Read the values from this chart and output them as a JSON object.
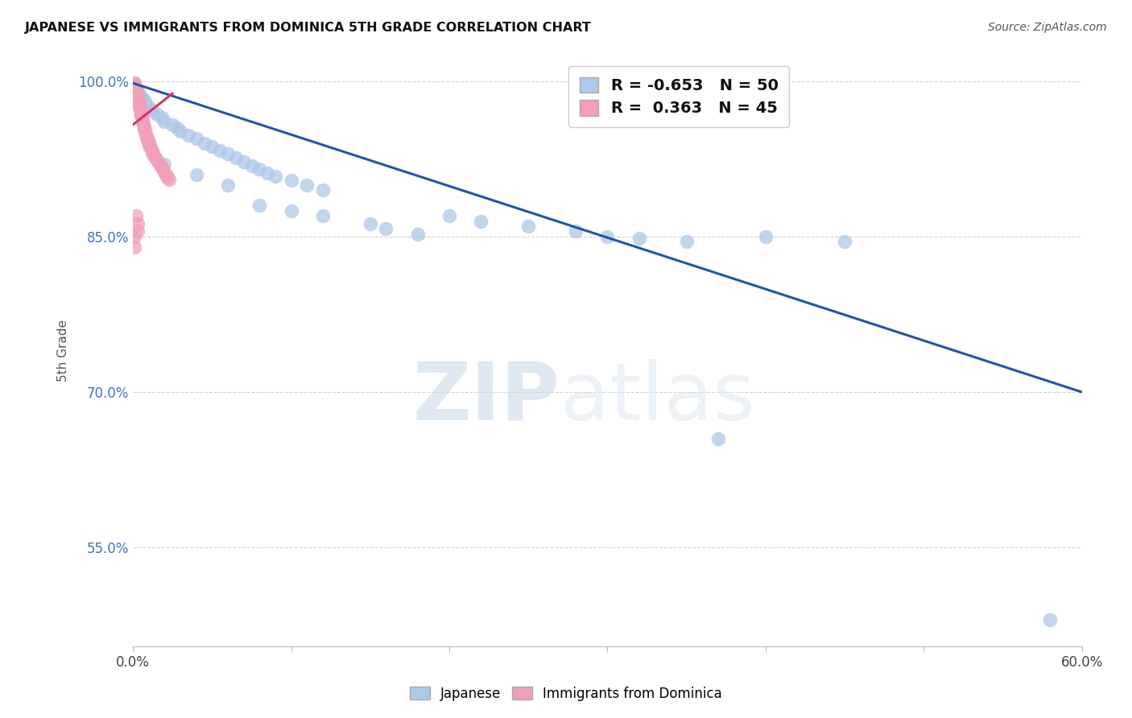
{
  "title": "JAPANESE VS IMMIGRANTS FROM DOMINICA 5TH GRADE CORRELATION CHART",
  "source": "Source: ZipAtlas.com",
  "ylabel": "5th Grade",
  "xlim": [
    0.0,
    0.6
  ],
  "ylim": [
    0.455,
    1.025
  ],
  "legend_r_blue": "-0.653",
  "legend_n_blue": "50",
  "legend_r_pink": "0.363",
  "legend_n_pink": "45",
  "blue_scatter": [
    [
      0.001,
      0.998
    ],
    [
      0.002,
      0.993
    ],
    [
      0.003,
      0.99
    ],
    [
      0.004,
      0.987
    ],
    [
      0.005,
      0.985
    ],
    [
      0.007,
      0.982
    ],
    [
      0.008,
      0.978
    ],
    [
      0.01,
      0.975
    ],
    [
      0.012,
      0.972
    ],
    [
      0.015,
      0.968
    ],
    [
      0.018,
      0.965
    ],
    [
      0.02,
      0.961
    ],
    [
      0.025,
      0.958
    ],
    [
      0.028,
      0.955
    ],
    [
      0.03,
      0.952
    ],
    [
      0.035,
      0.948
    ],
    [
      0.04,
      0.945
    ],
    [
      0.045,
      0.94
    ],
    [
      0.05,
      0.937
    ],
    [
      0.055,
      0.933
    ],
    [
      0.06,
      0.93
    ],
    [
      0.065,
      0.926
    ],
    [
      0.07,
      0.922
    ],
    [
      0.075,
      0.918
    ],
    [
      0.08,
      0.915
    ],
    [
      0.085,
      0.911
    ],
    [
      0.09,
      0.908
    ],
    [
      0.1,
      0.904
    ],
    [
      0.11,
      0.9
    ],
    [
      0.12,
      0.895
    ],
    [
      0.02,
      0.92
    ],
    [
      0.04,
      0.91
    ],
    [
      0.06,
      0.9
    ],
    [
      0.08,
      0.88
    ],
    [
      0.1,
      0.875
    ],
    [
      0.12,
      0.87
    ],
    [
      0.15,
      0.862
    ],
    [
      0.16,
      0.858
    ],
    [
      0.18,
      0.852
    ],
    [
      0.2,
      0.87
    ],
    [
      0.22,
      0.865
    ],
    [
      0.25,
      0.86
    ],
    [
      0.28,
      0.855
    ],
    [
      0.3,
      0.85
    ],
    [
      0.32,
      0.848
    ],
    [
      0.35,
      0.845
    ],
    [
      0.4,
      0.85
    ],
    [
      0.45,
      0.845
    ],
    [
      0.37,
      0.655
    ],
    [
      0.58,
      0.48
    ]
  ],
  "pink_scatter": [
    [
      0.001,
      0.998
    ],
    [
      0.001,
      0.995
    ],
    [
      0.002,
      0.993
    ],
    [
      0.002,
      0.99
    ],
    [
      0.002,
      0.988
    ],
    [
      0.003,
      0.986
    ],
    [
      0.003,
      0.983
    ],
    [
      0.003,
      0.981
    ],
    [
      0.004,
      0.978
    ],
    [
      0.004,
      0.976
    ],
    [
      0.004,
      0.974
    ],
    [
      0.005,
      0.971
    ],
    [
      0.005,
      0.969
    ],
    [
      0.005,
      0.967
    ],
    [
      0.006,
      0.964
    ],
    [
      0.006,
      0.962
    ],
    [
      0.006,
      0.96
    ],
    [
      0.007,
      0.957
    ],
    [
      0.007,
      0.955
    ],
    [
      0.007,
      0.953
    ],
    [
      0.008,
      0.95
    ],
    [
      0.008,
      0.948
    ],
    [
      0.009,
      0.945
    ],
    [
      0.009,
      0.943
    ],
    [
      0.01,
      0.941
    ],
    [
      0.01,
      0.938
    ],
    [
      0.011,
      0.936
    ],
    [
      0.012,
      0.933
    ],
    [
      0.012,
      0.931
    ],
    [
      0.013,
      0.928
    ],
    [
      0.014,
      0.926
    ],
    [
      0.015,
      0.924
    ],
    [
      0.016,
      0.921
    ],
    [
      0.017,
      0.919
    ],
    [
      0.018,
      0.917
    ],
    [
      0.019,
      0.914
    ],
    [
      0.02,
      0.912
    ],
    [
      0.021,
      0.91
    ],
    [
      0.022,
      0.907
    ],
    [
      0.023,
      0.905
    ],
    [
      0.002,
      0.87
    ],
    [
      0.003,
      0.862
    ],
    [
      0.003,
      0.855
    ],
    [
      0.001,
      0.85
    ],
    [
      0.001,
      0.84
    ]
  ],
  "blue_line_x": [
    0.0,
    0.6
  ],
  "blue_line_y": [
    0.998,
    0.7
  ],
  "pink_line_x": [
    0.0,
    0.025
  ],
  "pink_line_y": [
    0.958,
    0.988
  ],
  "blue_color": "#adc8e8",
  "blue_line_color": "#2255aa",
  "pink_color": "#f0a0b8",
  "pink_line_color": "#e03060",
  "watermark_zip": "ZIP",
  "watermark_atlas": "atlas",
  "background_color": "#ffffff",
  "grid_color": "#c8c8c8",
  "yticks": [
    1.0,
    0.85,
    0.7,
    0.55
  ],
  "xtick_positions": [
    0.0,
    0.1,
    0.2,
    0.3,
    0.4,
    0.5,
    0.6
  ]
}
